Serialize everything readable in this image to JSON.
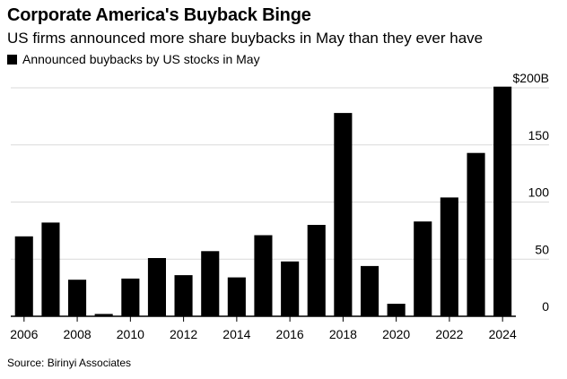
{
  "header": {
    "title": "Corporate America's Buyback Binge",
    "subtitle": "US firms announced more share buybacks in May than they ever have"
  },
  "legend": {
    "label": "Announced buybacks by US stocks in May"
  },
  "footer": {
    "source": "Source: Birinyi Associates"
  },
  "colors": {
    "bar": "#000000",
    "grid": "#d9d9d9",
    "baseline": "#000000"
  },
  "chart_data": {
    "type": "bar",
    "categories": [
      "2006",
      "2007",
      "2008",
      "2009",
      "2010",
      "2011",
      "2012",
      "2013",
      "2014",
      "2015",
      "2016",
      "2017",
      "2018",
      "2019",
      "2020",
      "2021",
      "2022",
      "2023",
      "2024"
    ],
    "series": [
      {
        "name": "Announced buybacks by US stocks in May",
        "values": [
          70,
          82,
          32,
          2,
          33,
          51,
          36,
          57,
          34,
          71,
          48,
          80,
          178,
          44,
          11,
          83,
          104,
          143,
          201
        ]
      }
    ],
    "x_tick_labels": [
      "2006",
      "2008",
      "2010",
      "2012",
      "2014",
      "2016",
      "2018",
      "2020",
      "2022",
      "2024"
    ],
    "y_ticks": [
      {
        "value": 0,
        "label": "0"
      },
      {
        "value": 50,
        "label": "50"
      },
      {
        "value": 100,
        "label": "100"
      },
      {
        "value": 150,
        "label": "150"
      },
      {
        "value": 200,
        "label": "$200B"
      }
    ],
    "ylim": [
      0,
      210
    ],
    "grid": true,
    "y_axis_side": "right"
  }
}
